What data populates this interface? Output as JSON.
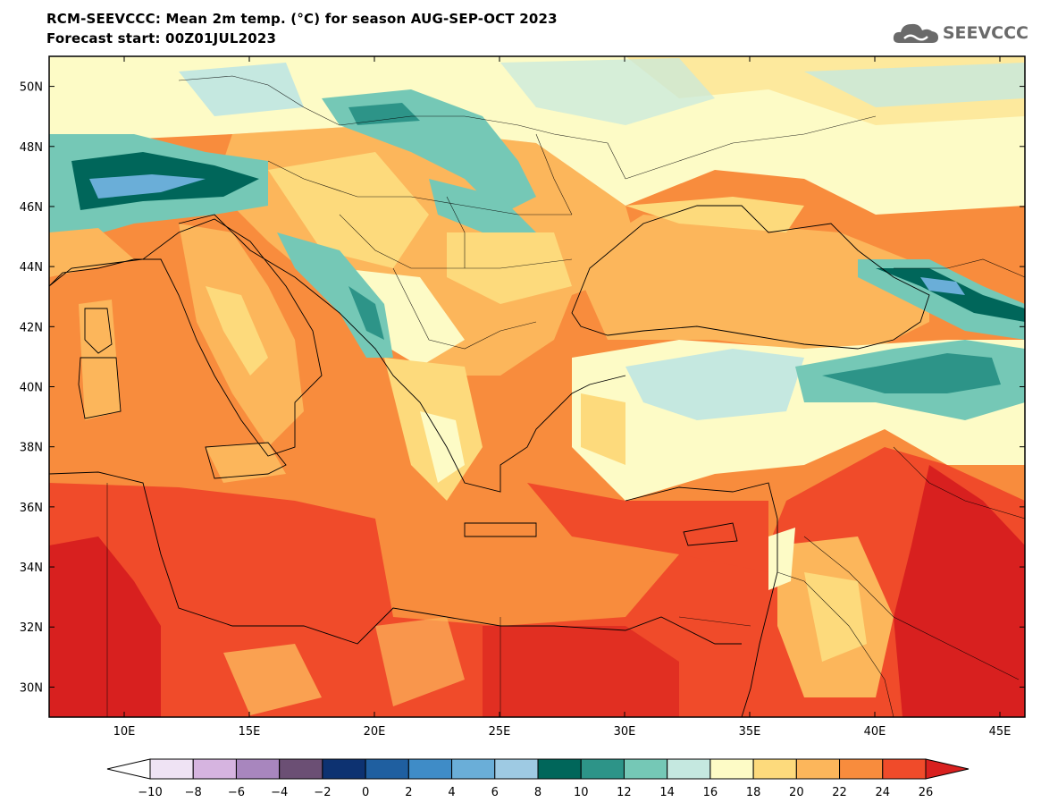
{
  "header": {
    "title_line1": "RCM-SEEVCCC: Mean 2m temp. (°C) for season AUG-SEP-OCT 2023",
    "title_line2": "Forecast start: 00Z01JUL2023"
  },
  "logo": {
    "text": "SEEVCCC",
    "icon": "cloud-icon",
    "color": "#6a6a6a"
  },
  "map": {
    "lon_range": [
      7,
      46
    ],
    "lat_range": [
      29,
      51
    ],
    "lon_ticks": [
      {
        "value": 10,
        "label": "10E"
      },
      {
        "value": 15,
        "label": "15E"
      },
      {
        "value": 20,
        "label": "20E"
      },
      {
        "value": 25,
        "label": "25E"
      },
      {
        "value": 30,
        "label": "30E"
      },
      {
        "value": 35,
        "label": "35E"
      },
      {
        "value": 40,
        "label": "40E"
      },
      {
        "value": 45,
        "label": "45E"
      }
    ],
    "lat_ticks": [
      {
        "value": 30,
        "label": "30N"
      },
      {
        "value": 32,
        "label": "32N"
      },
      {
        "value": 34,
        "label": "34N"
      },
      {
        "value": 36,
        "label": "36N"
      },
      {
        "value": 38,
        "label": "38N"
      },
      {
        "value": 40,
        "label": "40N"
      },
      {
        "value": 42,
        "label": "42N"
      },
      {
        "value": 44,
        "label": "44N"
      },
      {
        "value": 46,
        "label": "46N"
      },
      {
        "value": 48,
        "label": "48N"
      },
      {
        "value": 50,
        "label": "50N"
      }
    ]
  },
  "colorbar": {
    "labels": [
      "−10",
      "−8",
      "−6",
      "−4",
      "−2",
      "0",
      "2",
      "4",
      "6",
      "8",
      "10",
      "12",
      "14",
      "16",
      "18",
      "20",
      "22",
      "24",
      "26"
    ],
    "under_color": "#ffffff",
    "colors": [
      "#efe3f4",
      "#d6b4e0",
      "#a886be",
      "#6b4f74",
      "#0d3271",
      "#1f5fa0",
      "#3f8cc7",
      "#6aaed8",
      "#9ecae3",
      "#00665a",
      "#2d9488",
      "#75c8b6",
      "#c5e8e0",
      "#fdfbc6",
      "#fdda7c",
      "#fcb65b",
      "#f88c3d",
      "#f04b2a"
    ],
    "over_color": "#d8201f"
  }
}
